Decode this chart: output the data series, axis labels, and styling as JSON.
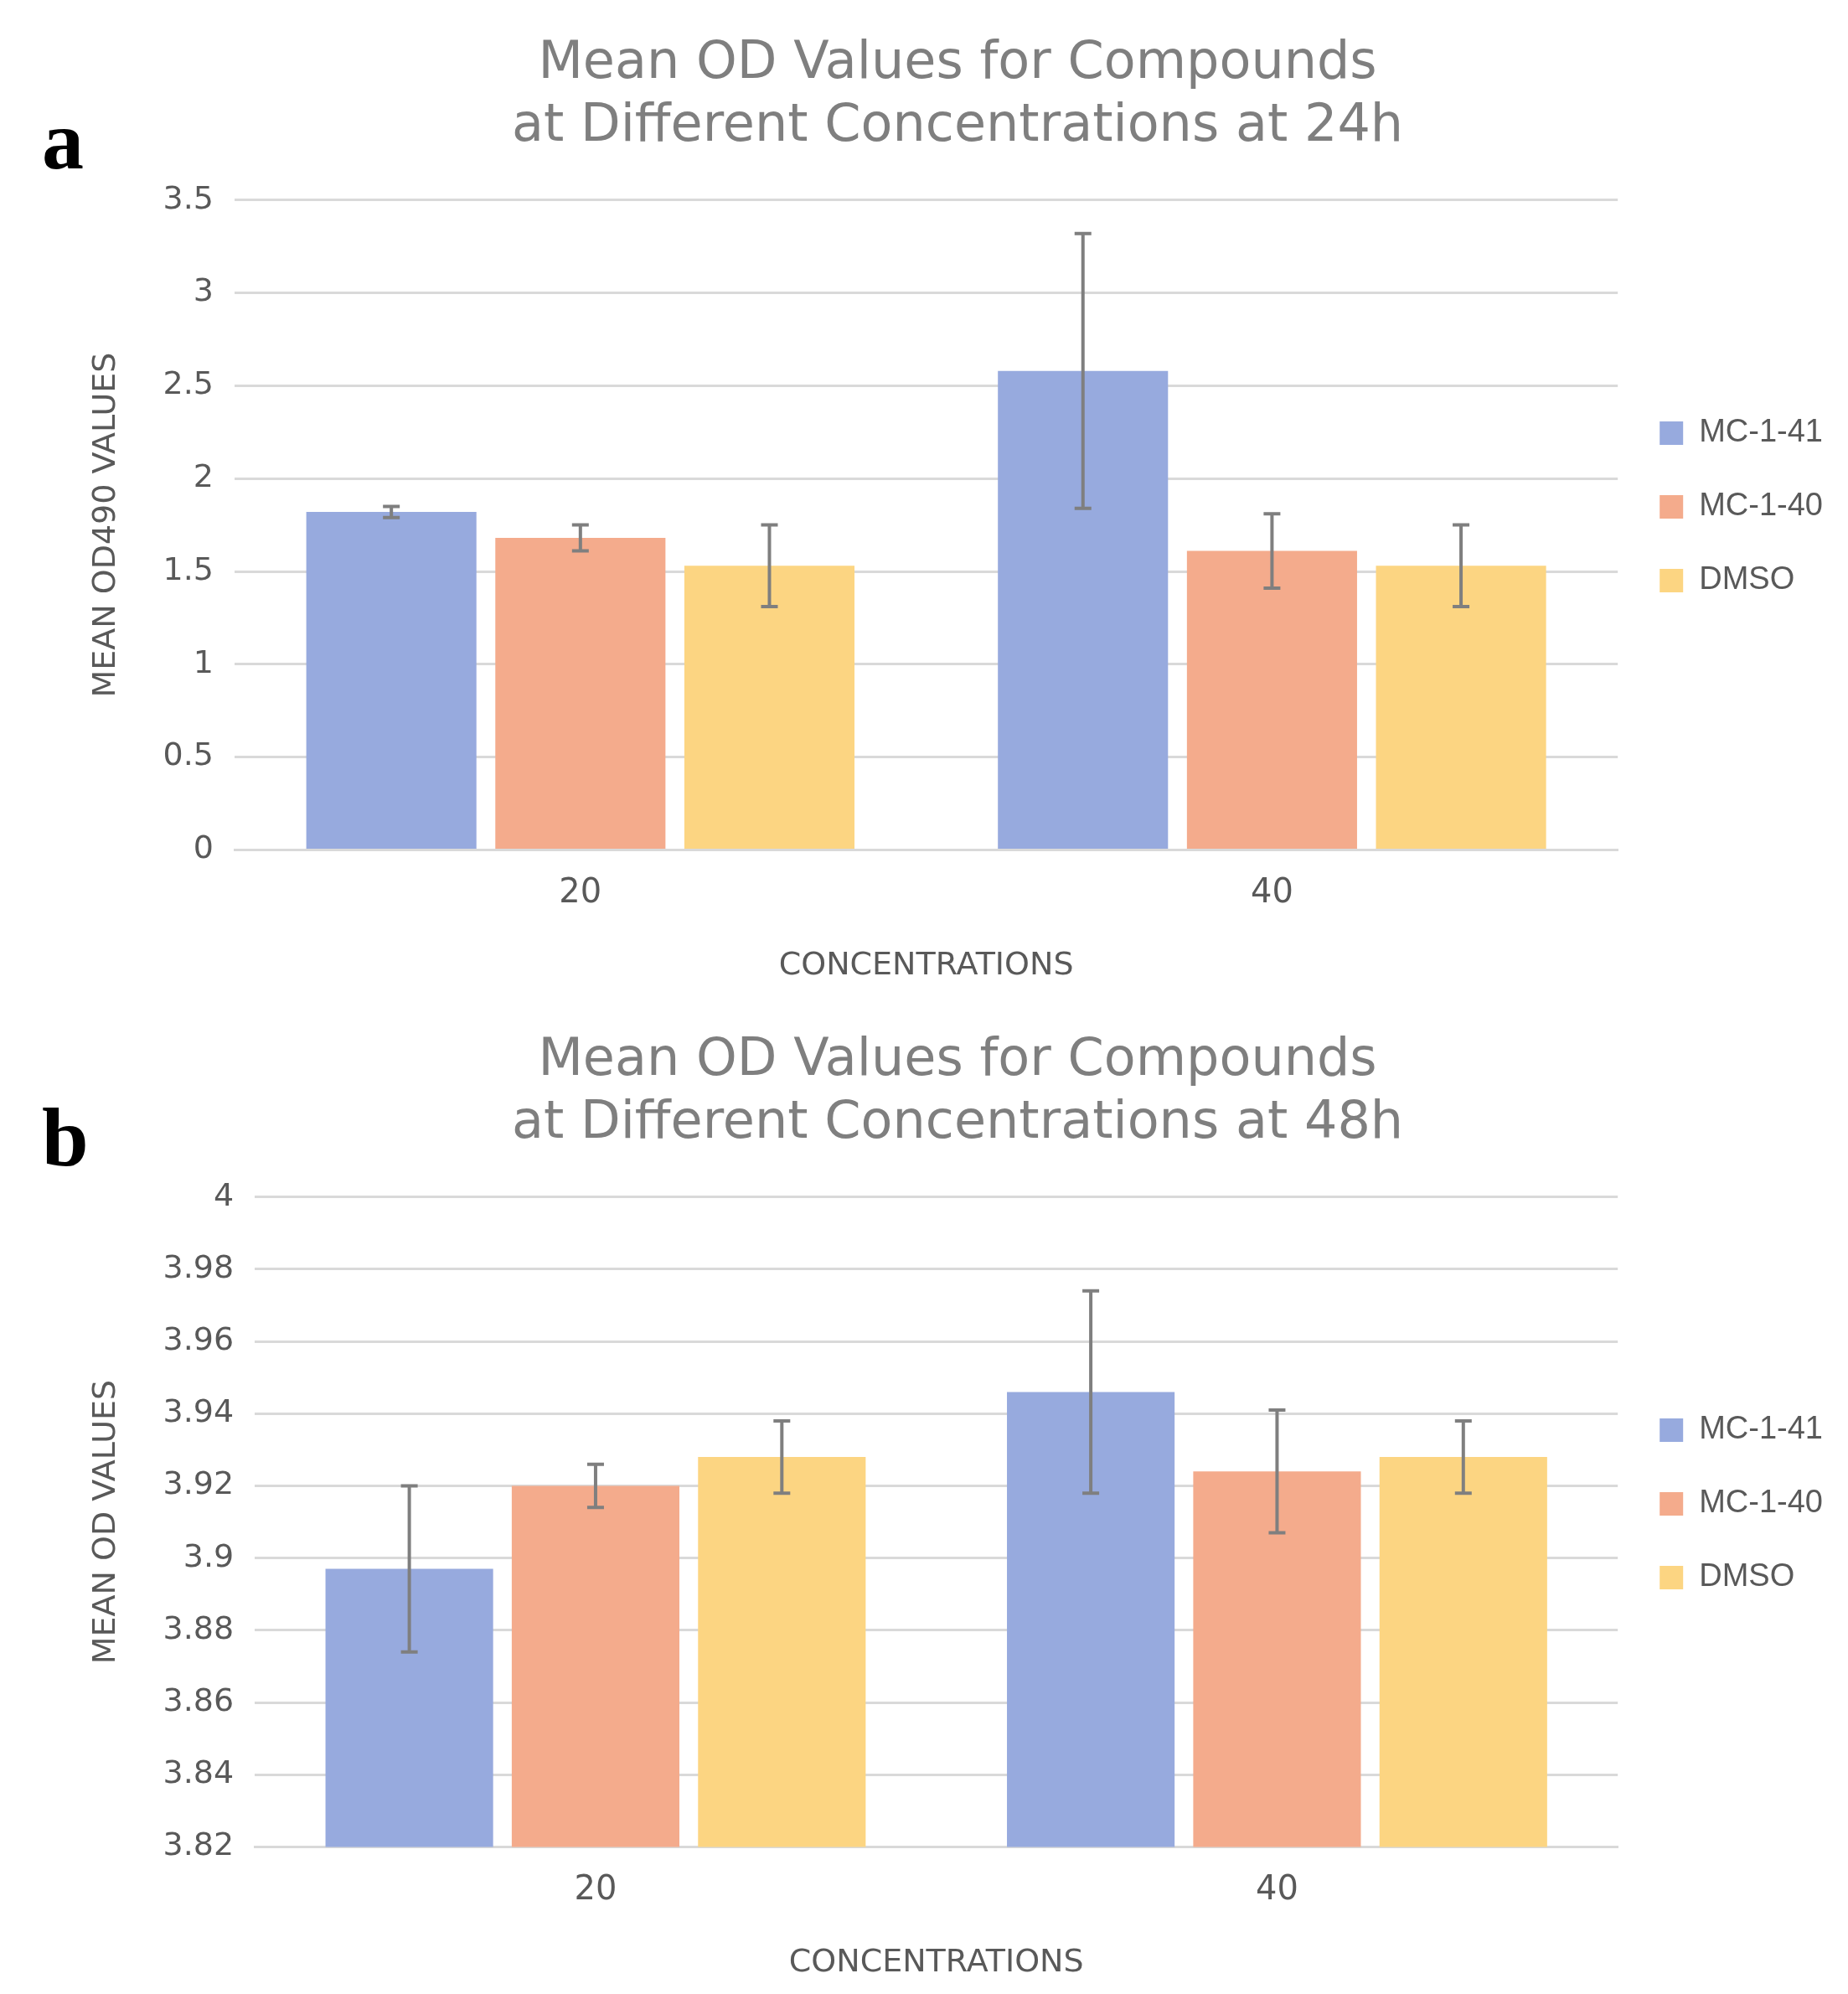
{
  "chart_data": [
    {
      "type": "bar",
      "title": "Mean OD Values for Compounds\nat Different Concentrations at 24h",
      "xlabel": "CONCENTRATIONS",
      "ylabel": "MEAN OD490 VALUES",
      "annotations": [
        "a"
      ],
      "categories": [
        "20",
        "40"
      ],
      "series": [
        {
          "name": "MC-1-41",
          "color": "#97aade",
          "values": [
            1.82,
            2.58
          ],
          "errors": [
            0.03,
            0.74
          ]
        },
        {
          "name": "MC-1-40",
          "color": "#f4ab8c",
          "values": [
            1.68,
            1.61
          ],
          "errors": [
            0.07,
            0.2
          ]
        },
        {
          "name": "DMSO",
          "color": "#fcd582",
          "values": [
            1.53,
            1.53
          ],
          "errors": [
            0.22,
            0.22
          ]
        }
      ],
      "ylim": [
        0,
        3.5
      ],
      "yticks": [
        0,
        0.5,
        1,
        1.5,
        2,
        2.5,
        3,
        3.5
      ],
      "grid": "y",
      "legend": "right"
    },
    {
      "type": "bar",
      "title": "Mean OD Values for Compounds\nat Different Concentrations at 48h",
      "xlabel": "CONCENTRATIONS",
      "ylabel": "MEAN OD VALUES",
      "annotations": [
        "b"
      ],
      "categories": [
        "20",
        "40"
      ],
      "series": [
        {
          "name": "MC-1-41",
          "color": "#97aade",
          "values": [
            3.897,
            3.946
          ],
          "errors": [
            0.023,
            0.028
          ]
        },
        {
          "name": "MC-1-40",
          "color": "#f4ab8c",
          "values": [
            3.92,
            3.924
          ],
          "errors": [
            0.006,
            0.017
          ]
        },
        {
          "name": "DMSO",
          "color": "#fcd582",
          "values": [
            3.928,
            3.928
          ],
          "errors": [
            0.01,
            0.01
          ]
        }
      ],
      "ylim": [
        3.82,
        4
      ],
      "yticks": [
        3.82,
        3.84,
        3.86,
        3.88,
        3.9,
        3.92,
        3.94,
        3.96,
        3.98,
        4
      ],
      "grid": "y",
      "legend": "right"
    }
  ]
}
